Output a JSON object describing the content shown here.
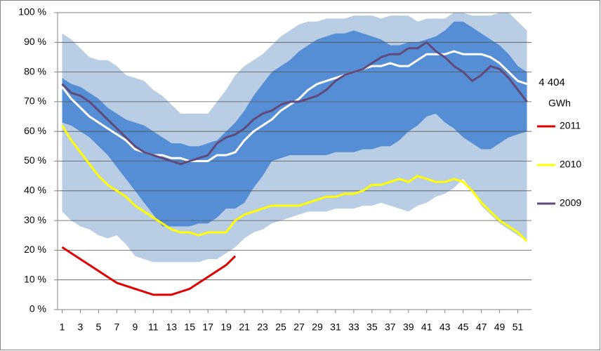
{
  "chart_data": {
    "type": "line",
    "annotations": [
      "4 404",
      "GWh"
    ],
    "x": [
      1,
      2,
      3,
      4,
      5,
      6,
      7,
      8,
      9,
      10,
      11,
      12,
      13,
      14,
      15,
      16,
      17,
      18,
      19,
      20,
      21,
      22,
      23,
      24,
      25,
      26,
      27,
      28,
      29,
      30,
      31,
      32,
      33,
      34,
      35,
      36,
      37,
      38,
      39,
      40,
      41,
      42,
      43,
      44,
      45,
      46,
      47,
      48,
      49,
      50,
      51,
      52
    ],
    "xlim": [
      0.5,
      52.5
    ],
    "xticks": [
      1,
      3,
      5,
      7,
      9,
      11,
      13,
      15,
      17,
      19,
      21,
      23,
      25,
      27,
      29,
      31,
      33,
      35,
      37,
      39,
      41,
      43,
      45,
      47,
      49,
      51
    ],
    "ylim": [
      0,
      100
    ],
    "yticks": [
      {
        "value": 0,
        "label": "0 %"
      },
      {
        "value": 10,
        "label": "10 %"
      },
      {
        "value": 20,
        "label": "20 %"
      },
      {
        "value": 30,
        "label": "30 %"
      },
      {
        "value": 40,
        "label": "40 %"
      },
      {
        "value": 50,
        "label": "50 %"
      },
      {
        "value": 60,
        "label": "60 %"
      },
      {
        "value": 70,
        "label": "70 %"
      },
      {
        "value": 80,
        "label": "80 %"
      },
      {
        "value": 90,
        "label": "90 %"
      },
      {
        "value": 100,
        "label": "100 %"
      }
    ],
    "grid": true,
    "bands": [
      {
        "color": "#b9cde5",
        "upper": [
          93,
          91,
          88,
          85,
          84,
          84,
          82,
          79,
          78,
          77,
          74,
          72,
          69,
          66,
          66,
          66,
          66,
          70,
          74,
          79,
          82,
          84,
          86,
          89,
          92,
          94,
          96,
          97,
          97,
          98,
          98,
          98,
          99,
          99,
          99,
          98,
          99,
          99,
          99,
          97,
          98,
          98,
          98,
          100,
          100,
          99,
          99,
          99,
          100,
          100,
          97,
          94
        ],
        "lower": [
          33,
          30,
          28,
          27,
          25,
          24,
          25,
          22,
          18,
          17,
          16,
          16,
          16,
          16,
          16,
          16,
          17,
          17,
          19,
          21,
          24,
          26,
          27,
          29,
          30,
          31,
          32,
          33,
          33,
          33,
          34,
          34,
          34,
          35,
          35,
          36,
          35,
          34,
          33,
          35,
          36,
          38,
          39,
          41,
          44,
          40,
          35,
          32,
          29,
          27,
          25,
          23
        ]
      },
      {
        "color": "#558ed5",
        "upper": [
          78,
          76,
          75,
          73,
          71,
          68,
          66,
          64,
          63,
          62,
          60,
          58,
          56,
          56,
          55,
          55,
          56,
          57,
          60,
          63,
          67,
          72,
          76,
          80,
          82,
          84,
          87,
          89,
          91,
          92,
          93,
          93,
          94,
          93,
          92,
          91,
          89,
          89,
          90,
          90,
          91,
          92,
          94,
          97,
          97,
          95,
          93,
          91,
          89,
          86,
          82,
          80
        ],
        "lower": [
          63,
          62,
          60,
          58,
          55,
          52,
          48,
          44,
          40,
          36,
          32,
          28,
          28,
          28,
          28,
          29,
          29,
          31,
          34,
          34,
          36,
          41,
          45,
          50,
          51,
          52,
          52,
          52,
          52,
          52,
          53,
          53,
          53,
          54,
          54,
          55,
          55,
          57,
          60,
          62,
          65,
          66,
          63,
          61,
          58,
          56,
          54,
          54,
          56,
          58,
          59,
          60
        ]
      }
    ],
    "series": [
      {
        "color": "#ffffff",
        "width": 3,
        "values": [
          75,
          71,
          68,
          65,
          63,
          61,
          59,
          57,
          54,
          53,
          52,
          52,
          51,
          51,
          50,
          50,
          50,
          52,
          52,
          53,
          57,
          60,
          62,
          64,
          67,
          69,
          71,
          74,
          76,
          77,
          78,
          79,
          80,
          81,
          82,
          82,
          83,
          82,
          82,
          84,
          86,
          86,
          86,
          87,
          86,
          86,
          86,
          85,
          83,
          80,
          77,
          76
        ]
      },
      {
        "name": "2011",
        "color": "#e00000",
        "width": 3,
        "values": [
          21,
          19,
          17,
          15,
          13,
          11,
          9,
          8,
          7,
          6,
          5,
          5,
          5,
          6,
          7,
          9,
          11,
          13,
          15,
          18,
          null,
          null,
          null,
          null,
          null,
          null,
          null,
          null,
          null,
          null,
          null,
          null,
          null,
          null,
          null,
          null,
          null,
          null,
          null,
          null,
          null,
          null,
          null,
          null,
          null,
          null,
          null,
          null,
          null,
          null,
          null,
          null
        ]
      },
      {
        "name": "2010",
        "color": "#ffff00",
        "width": 3,
        "values": [
          62,
          57,
          53,
          49,
          45,
          42,
          40,
          38,
          35,
          33,
          31,
          29,
          27,
          26,
          26,
          25,
          26,
          26,
          26,
          30,
          32,
          33,
          34,
          35,
          35,
          35,
          35,
          36,
          37,
          38,
          38,
          39,
          39,
          40,
          42,
          42,
          43,
          44,
          43,
          45,
          44,
          43,
          43,
          44,
          43,
          40,
          36,
          33,
          30,
          28,
          26,
          23
        ]
      },
      {
        "name": "2009",
        "color": "#604a7b",
        "width": 3,
        "values": [
          76,
          73,
          72,
          70,
          67,
          64,
          61,
          58,
          55,
          53,
          52,
          51,
          50,
          49,
          50,
          51,
          52,
          56,
          58,
          59,
          61,
          64,
          66,
          67,
          69,
          70,
          70,
          71,
          72,
          74,
          77,
          79,
          80,
          81,
          83,
          85,
          86,
          86,
          88,
          88,
          90,
          87,
          85,
          82,
          80,
          77,
          79,
          82,
          81,
          78,
          74,
          70
        ]
      }
    ]
  }
}
